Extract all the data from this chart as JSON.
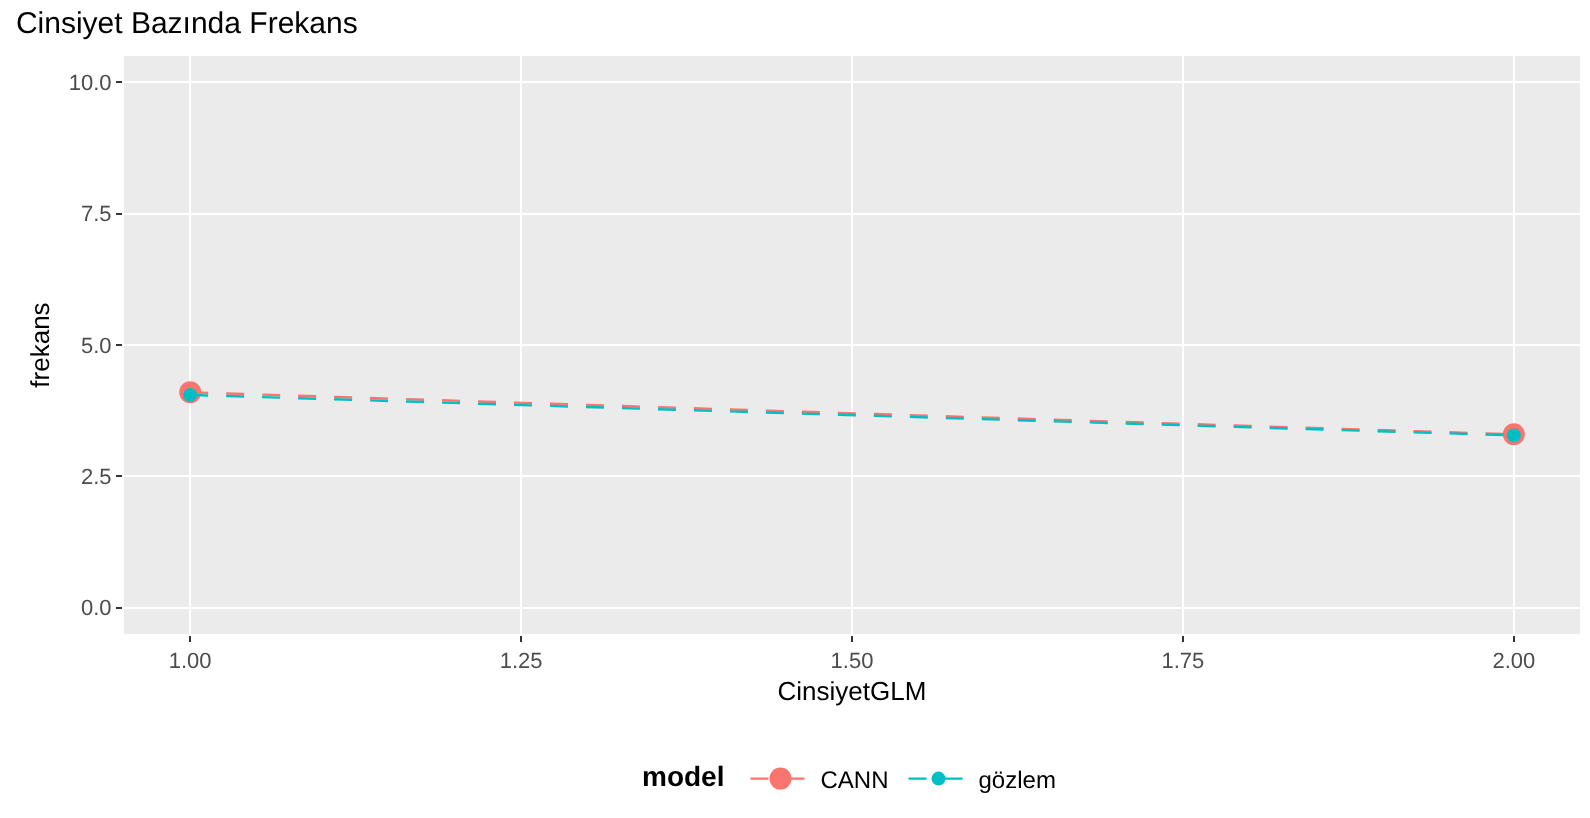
{
  "chart_data": {
    "type": "line",
    "title": "Cinsiyet Bazında Frekans",
    "xlabel": "CinsiyetGLM",
    "ylabel": "frekans",
    "legend_title": "model",
    "x": [
      1.0,
      2.0
    ],
    "series": [
      {
        "name": "CANN",
        "color": "#f8766d",
        "values": [
          4.1,
          3.3
        ]
      },
      {
        "name": "gözlem",
        "color": "#00bfc4",
        "values": [
          4.05,
          3.28
        ]
      }
    ],
    "xlim": [
      0.95,
      2.05
    ],
    "xticks": [
      {
        "value": 1,
        "label": "1.00"
      },
      {
        "value": 1.25,
        "label": "1.25"
      },
      {
        "value": 1.5,
        "label": "1.50"
      },
      {
        "value": 1.75,
        "label": "1.75"
      },
      {
        "value": 2,
        "label": "2.00"
      }
    ],
    "ylim": [
      -0.5,
      10.5
    ],
    "yticks": [
      {
        "value": 0,
        "label": "0.0"
      },
      {
        "value": 2.5,
        "label": "2.5"
      },
      {
        "value": 5,
        "label": "5.0"
      },
      {
        "value": 7.5,
        "label": "7.5"
      },
      {
        "value": 10,
        "label": "10.0"
      }
    ],
    "grid": true,
    "legend": "bottom",
    "marker": "circle",
    "line_style": "dashed"
  }
}
